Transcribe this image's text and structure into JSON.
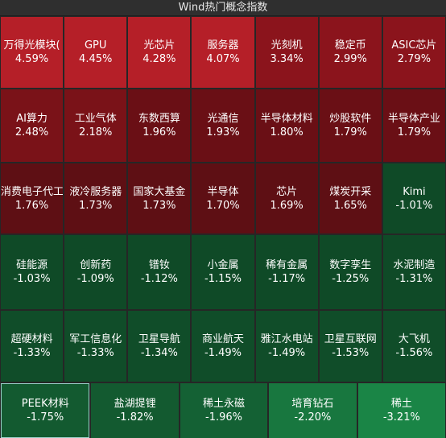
{
  "header": {
    "title": "Wind热门概念指数"
  },
  "rows": [
    [
      {
        "name": "万得光模块(",
        "pct": "4.59%",
        "color": "#b51f28"
      },
      {
        "name": "GPU",
        "pct": "4.45%",
        "color": "#b51f28"
      },
      {
        "name": "光芯片",
        "pct": "4.28%",
        "color": "#b51f28"
      },
      {
        "name": "服务器",
        "pct": "4.07%",
        "color": "#b51f28"
      },
      {
        "name": "光刻机",
        "pct": "3.34%",
        "color": "#8b141c"
      },
      {
        "name": "稳定币",
        "pct": "2.99%",
        "color": "#8b141c"
      },
      {
        "name": "ASIC芯片",
        "pct": "2.79%",
        "color": "#8b141c"
      }
    ],
    [
      {
        "name": "AI算力",
        "pct": "2.48%",
        "color": "#7a1218"
      },
      {
        "name": "工业气体",
        "pct": "2.18%",
        "color": "#7a1218"
      },
      {
        "name": "东数西算",
        "pct": "1.96%",
        "color": "#6a0f15"
      },
      {
        "name": "光通信",
        "pct": "1.93%",
        "color": "#6a0f15"
      },
      {
        "name": "半导体材料",
        "pct": "1.80%",
        "color": "#6a0f15"
      },
      {
        "name": "炒股软件",
        "pct": "1.79%",
        "color": "#6a0f15"
      },
      {
        "name": "半导体产业",
        "pct": "1.79%",
        "color": "#6a0f15"
      }
    ],
    [
      {
        "name": "消费电子代工",
        "pct": "1.76%",
        "color": "#5e0f14"
      },
      {
        "name": "液冷服务器",
        "pct": "1.73%",
        "color": "#5e0f14"
      },
      {
        "name": "国家大基金",
        "pct": "1.73%",
        "color": "#5e0f14"
      },
      {
        "name": "半导体",
        "pct": "1.70%",
        "color": "#5e0f14"
      },
      {
        "name": "芯片",
        "pct": "1.69%",
        "color": "#5e0f14"
      },
      {
        "name": "煤炭开采",
        "pct": "1.65%",
        "color": "#5e0f14"
      },
      {
        "name": "Kimi",
        "pct": "-1.01%",
        "color": "#0f4a27"
      }
    ],
    [
      {
        "name": "硅能源",
        "pct": "-1.03%",
        "color": "#0f4a27"
      },
      {
        "name": "创新药",
        "pct": "-1.09%",
        "color": "#0f4a27"
      },
      {
        "name": "镨钕",
        "pct": "-1.12%",
        "color": "#0f4a27"
      },
      {
        "name": "小金属",
        "pct": "-1.15%",
        "color": "#0f4a27"
      },
      {
        "name": "稀有金属",
        "pct": "-1.17%",
        "color": "#0f4a27"
      },
      {
        "name": "数字孪生",
        "pct": "-1.25%",
        "color": "#0f4a27"
      },
      {
        "name": "水泥制造",
        "pct": "-1.31%",
        "color": "#0f4a27"
      }
    ],
    [
      {
        "name": "超硬材料",
        "pct": "-1.33%",
        "color": "#104d29"
      },
      {
        "name": "军工信息化",
        "pct": "-1.33%",
        "color": "#104d29"
      },
      {
        "name": "卫星导航",
        "pct": "-1.34%",
        "color": "#104d29"
      },
      {
        "name": "商业航天",
        "pct": "-1.49%",
        "color": "#104d29"
      },
      {
        "name": "雅江水电站",
        "pct": "-1.49%",
        "color": "#104d29"
      },
      {
        "name": "卫星互联网",
        "pct": "-1.53%",
        "color": "#104d29"
      },
      {
        "name": "大飞机",
        "pct": "-1.56%",
        "color": "#104d29"
      }
    ],
    [
      {
        "name": "PEEK材料",
        "pct": "-1.75%",
        "color": "#135a30",
        "selected": true
      },
      {
        "name": "盐湖提锂",
        "pct": "-1.82%",
        "color": "#135a30"
      },
      {
        "name": "稀土永磁",
        "pct": "-1.96%",
        "color": "#146134"
      },
      {
        "name": "培育钻石",
        "pct": "-2.20%",
        "color": "#18773f"
      },
      {
        "name": "稀土",
        "pct": "-3.21%",
        "color": "#1a8546"
      }
    ]
  ]
}
